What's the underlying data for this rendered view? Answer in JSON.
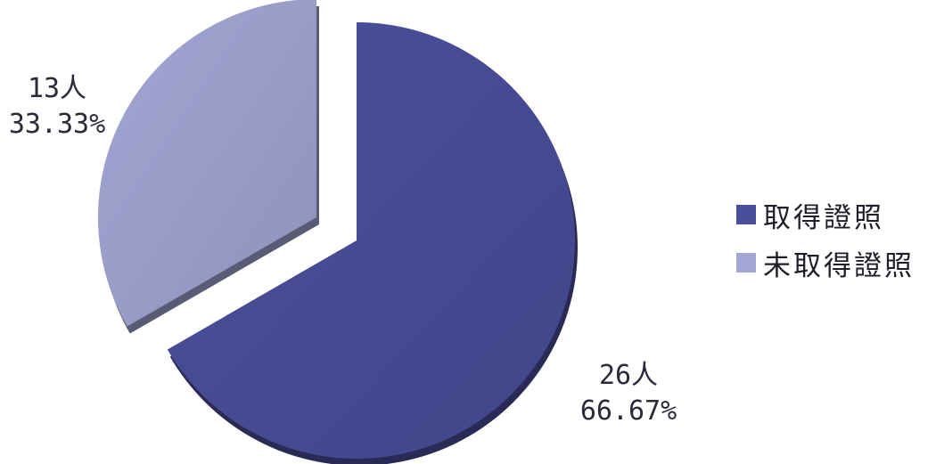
{
  "chart_data": {
    "type": "pie",
    "categories": [
      "取得證照",
      "未取得證照"
    ],
    "values": [
      26,
      13
    ],
    "percentages": [
      "66.67%",
      "33.33%"
    ],
    "labels": [
      {
        "count": "26人",
        "percent": "66.67%"
      },
      {
        "count": "13人",
        "percent": "33.33%"
      }
    ],
    "colors": [
      "#4a4f9c",
      "#a2a6d3"
    ],
    "exploded_slice": "未取得證照",
    "legend": {
      "position": "right",
      "entries": [
        "取得證照",
        "未取得證照"
      ]
    }
  }
}
